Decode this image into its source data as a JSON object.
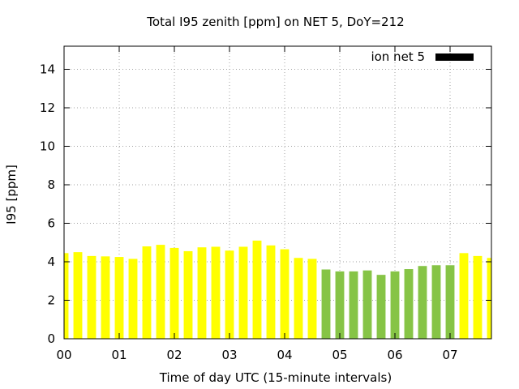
{
  "chart_data": {
    "type": "bar",
    "title": "Total I95 zenith [ppm] on NET 5, DoY=212",
    "xlabel": "Time of day UTC (15-minute intervals)",
    "ylabel": "I95 [ppm]",
    "xlim": [
      0,
      7.75
    ],
    "ylim": [
      0,
      15.2
    ],
    "xticks": [
      {
        "value": 0,
        "label": "00"
      },
      {
        "value": 1,
        "label": "01"
      },
      {
        "value": 2,
        "label": "02"
      },
      {
        "value": 3,
        "label": "03"
      },
      {
        "value": 4,
        "label": "04"
      },
      {
        "value": 5,
        "label": "05"
      },
      {
        "value": 6,
        "label": "06"
      },
      {
        "value": 7,
        "label": "07"
      }
    ],
    "yticks": [
      0,
      2,
      4,
      6,
      8,
      10,
      12,
      14
    ],
    "grid": true,
    "legend": {
      "position": "top-right",
      "label": "ion net 5",
      "color": "#000000"
    },
    "colors": {
      "yellow": "#ffff00",
      "green": "#86c446"
    },
    "bars": [
      {
        "x": 0.0,
        "value": 4.45,
        "color": "#ffff00"
      },
      {
        "x": 0.25,
        "value": 4.5,
        "color": "#ffff00"
      },
      {
        "x": 0.5,
        "value": 4.3,
        "color": "#ffff00"
      },
      {
        "x": 0.75,
        "value": 4.28,
        "color": "#ffff00"
      },
      {
        "x": 1.0,
        "value": 4.25,
        "color": "#ffff00"
      },
      {
        "x": 1.25,
        "value": 4.15,
        "color": "#ffff00"
      },
      {
        "x": 1.5,
        "value": 4.8,
        "color": "#ffff00"
      },
      {
        "x": 1.75,
        "value": 4.88,
        "color": "#ffff00"
      },
      {
        "x": 2.0,
        "value": 4.72,
        "color": "#ffff00"
      },
      {
        "x": 2.25,
        "value": 4.55,
        "color": "#ffff00"
      },
      {
        "x": 2.5,
        "value": 4.75,
        "color": "#ffff00"
      },
      {
        "x": 2.75,
        "value": 4.78,
        "color": "#ffff00"
      },
      {
        "x": 3.0,
        "value": 4.58,
        "color": "#ffff00"
      },
      {
        "x": 3.25,
        "value": 4.78,
        "color": "#ffff00"
      },
      {
        "x": 3.5,
        "value": 5.1,
        "color": "#ffff00"
      },
      {
        "x": 3.75,
        "value": 4.85,
        "color": "#ffff00"
      },
      {
        "x": 4.0,
        "value": 4.65,
        "color": "#ffff00"
      },
      {
        "x": 4.25,
        "value": 4.2,
        "color": "#ffff00"
      },
      {
        "x": 4.5,
        "value": 4.15,
        "color": "#ffff00"
      },
      {
        "x": 4.75,
        "value": 3.6,
        "color": "#86c446"
      },
      {
        "x": 5.0,
        "value": 3.5,
        "color": "#86c446"
      },
      {
        "x": 5.25,
        "value": 3.5,
        "color": "#86c446"
      },
      {
        "x": 5.5,
        "value": 3.55,
        "color": "#86c446"
      },
      {
        "x": 5.75,
        "value": 3.32,
        "color": "#86c446"
      },
      {
        "x": 6.0,
        "value": 3.5,
        "color": "#86c446"
      },
      {
        "x": 6.25,
        "value": 3.62,
        "color": "#86c446"
      },
      {
        "x": 6.5,
        "value": 3.78,
        "color": "#86c446"
      },
      {
        "x": 6.75,
        "value": 3.82,
        "color": "#86c446"
      },
      {
        "x": 7.0,
        "value": 3.82,
        "color": "#86c446"
      },
      {
        "x": 7.25,
        "value": 4.45,
        "color": "#ffff00"
      },
      {
        "x": 7.5,
        "value": 4.3,
        "color": "#ffff00"
      },
      {
        "x": 7.75,
        "value": 4.2,
        "color": "#ffff00"
      }
    ]
  }
}
